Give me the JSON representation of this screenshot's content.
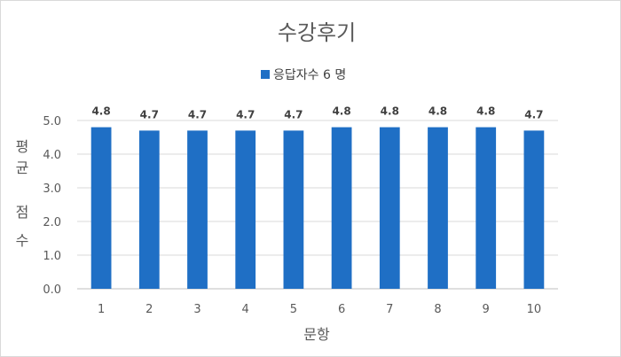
{
  "chart_data": {
    "type": "bar",
    "title": "수강후기",
    "xlabel": "문항",
    "ylabel": [
      "평",
      "균",
      "점",
      "수"
    ],
    "categories": [
      "1",
      "2",
      "3",
      "4",
      "5",
      "6",
      "7",
      "8",
      "9",
      "10"
    ],
    "series": [
      {
        "name": "응답자수 6 명",
        "color": "#1f6fc5",
        "values": [
          4.8,
          4.7,
          4.7,
          4.7,
          4.7,
          4.8,
          4.8,
          4.8,
          4.8,
          4.7
        ]
      }
    ],
    "data_labels": [
      "4.8",
      "4.7",
      "4.7",
      "4.7",
      "4.7",
      "4.8",
      "4.8",
      "4.8",
      "4.8",
      "4.7"
    ],
    "yticks": [
      "0.0",
      "1.0",
      "2.0",
      "3.0",
      "4.0",
      "5.0"
    ],
    "ylim": [
      0,
      5
    ],
    "grid": true,
    "legend_position": "top-center"
  }
}
